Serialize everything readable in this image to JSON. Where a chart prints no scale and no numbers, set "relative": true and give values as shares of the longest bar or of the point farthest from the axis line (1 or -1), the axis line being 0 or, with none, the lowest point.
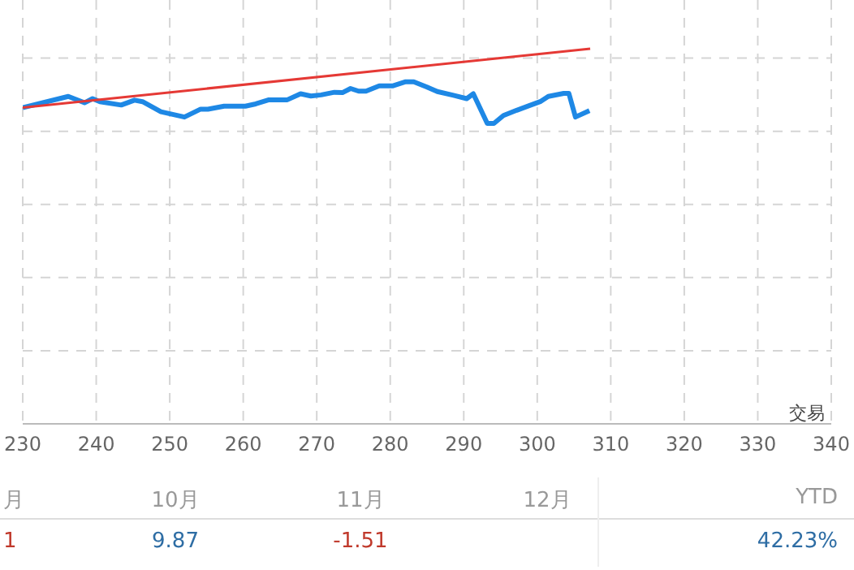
{
  "chart_data": {
    "type": "line",
    "relative": true,
    "xlabel": "交易",
    "xlim": [
      230,
      340
    ],
    "xticks": [
      230,
      240,
      250,
      260,
      270,
      280,
      290,
      300,
      310,
      320,
      330,
      340
    ],
    "grid": true,
    "line_style": "solid",
    "marker": "none",
    "series": [
      {
        "color": "#1e88e5",
        "x": [
          230,
          236.2,
          238.4,
          239.5,
          240.5,
          243.4,
          245.2,
          246.3,
          248.8,
          252.0,
          254.2,
          255.2,
          257.4,
          260.3,
          261.7,
          263.5,
          266.0,
          267.8,
          269.2,
          270.6,
          272.4,
          273.5,
          274.6,
          275.7,
          276.7,
          278.5,
          280.3,
          282.1,
          283.2,
          285.0,
          286.4,
          288.6,
          290.4,
          291.3,
          293.2,
          294.1,
          295.4,
          297.2,
          298.6,
          300.4,
          301.5,
          303.6,
          304.3,
          305.2,
          307.1
        ],
        "values": [
          0.843,
          0.873,
          0.856,
          0.867,
          0.859,
          0.85,
          0.863,
          0.859,
          0.832,
          0.818,
          0.839,
          0.839,
          0.847,
          0.847,
          0.853,
          0.864,
          0.864,
          0.88,
          0.874,
          0.877,
          0.884,
          0.883,
          0.894,
          0.887,
          0.887,
          0.901,
          0.901,
          0.912,
          0.912,
          0.898,
          0.886,
          0.876,
          0.867,
          0.88,
          0.801,
          0.801,
          0.822,
          0.836,
          0.846,
          0.859,
          0.873,
          0.881,
          0.881,
          0.818,
          0.835
        ]
      },
      {
        "color": "#e53935",
        "x": [
          230,
          307.2
        ],
        "values": [
          0.843,
          1.0
        ]
      }
    ],
    "annotations": [
      "月",
      "10月",
      "11月",
      "12月",
      "YTD",
      "1",
      "9.87",
      "-1.51",
      "42.23%"
    ]
  }
}
